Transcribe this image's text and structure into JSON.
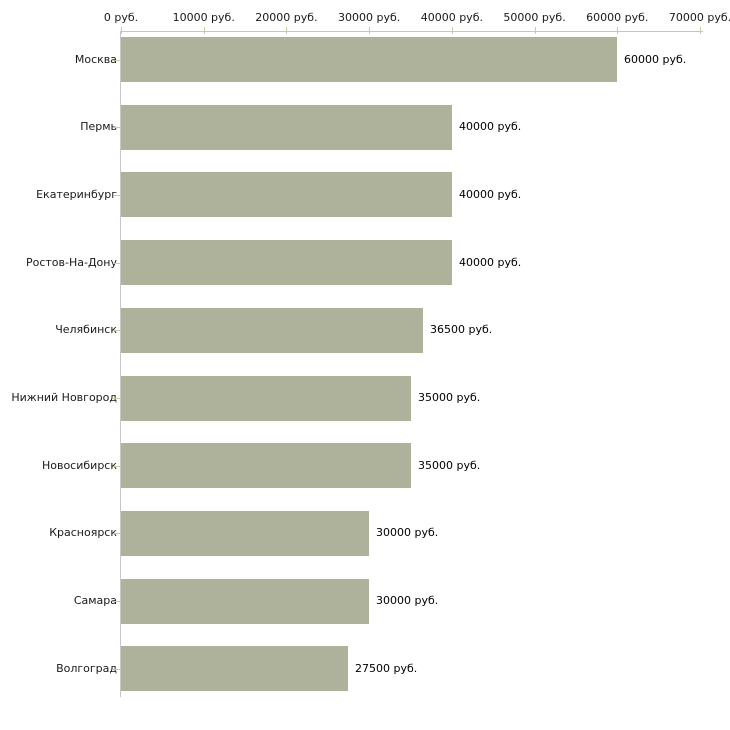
{
  "chart_data": {
    "type": "bar",
    "orientation": "horizontal",
    "title": "",
    "xlabel": "",
    "ylabel": "",
    "unit_suffix": " руб.",
    "xlim": [
      0,
      70000
    ],
    "x_tick_interval": 10000,
    "x_tick_values": [
      0,
      10000,
      20000,
      30000,
      40000,
      50000,
      60000,
      70000
    ],
    "x_tick_labels": [
      "0 руб.",
      "10000 руб.",
      "20000 руб.",
      "30000 руб.",
      "40000 руб.",
      "50000 руб.",
      "60000 руб.",
      "70000 руб."
    ],
    "categories": [
      "Москва",
      "Пермь",
      "Екатеринбург",
      "Ростов-На-Дону",
      "Челябинск",
      "Нижний Новгород",
      "Новосибирск",
      "Красноярск",
      "Самара",
      "Волгоград"
    ],
    "values": [
      60000,
      40000,
      40000,
      40000,
      36500,
      35000,
      35000,
      30000,
      30000,
      27500
    ],
    "value_labels": [
      "60000 руб.",
      "40000 руб.",
      "40000 руб.",
      "40000 руб.",
      "36500 руб.",
      "35000 руб.",
      "35000 руб.",
      "30000 руб.",
      "30000 руб.",
      "27500 руб."
    ],
    "grid": false,
    "legend": null,
    "colors": {
      "bar_fill": "#aeb29a",
      "axis_line": "#c6c6c6",
      "tick_mark": "#c9cba3",
      "label_text": "#1a1a1a",
      "background": "#ffffff"
    }
  }
}
